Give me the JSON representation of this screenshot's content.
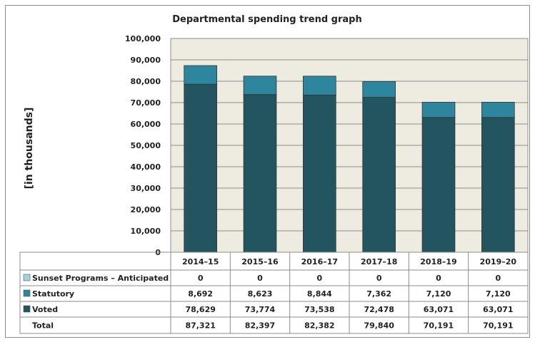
{
  "chart_data": {
    "type": "bar",
    "stacked": true,
    "title": "Departmental spending trend graph",
    "ylabel": "[in thousands]",
    "ylim": [
      0,
      100000
    ],
    "yticks": [
      "0",
      "10,000",
      "20,000",
      "30,000",
      "40,000",
      "50,000",
      "60,000",
      "70,000",
      "80,000",
      "90,000",
      "100,000"
    ],
    "ytick_values": [
      0,
      10000,
      20000,
      30000,
      40000,
      50000,
      60000,
      70000,
      80000,
      90000,
      100000
    ],
    "grid": true,
    "categories": [
      "2014–15",
      "2015–16",
      "2016–17",
      "2017–18",
      "2018–19",
      "2019–20"
    ],
    "series": [
      {
        "name": "Sunset Programs – Anticipated",
        "color": "#9fd3e0",
        "values": [
          0,
          0,
          0,
          0,
          0,
          0
        ],
        "labels": [
          "0",
          "0",
          "0",
          "0",
          "0",
          "0"
        ]
      },
      {
        "name": "Statutory",
        "color": "#2e869e",
        "values": [
          8692,
          8623,
          8844,
          7362,
          7120,
          7120
        ],
        "labels": [
          "8,692",
          "8,623",
          "8,844",
          "7,362",
          "7,120",
          "7,120"
        ]
      },
      {
        "name": "Voted",
        "color": "#22555f",
        "values": [
          78629,
          73774,
          73538,
          72478,
          63071,
          63071
        ],
        "labels": [
          "78,629",
          "73,774",
          "73,538",
          "72,478",
          "63,071",
          "63,071"
        ]
      }
    ],
    "total": {
      "name": "Total",
      "labels": [
        "87,321",
        "82,397",
        "82,382",
        "79,840",
        "70,191",
        "70,191"
      ]
    },
    "plot_background": "#eeebe0"
  }
}
